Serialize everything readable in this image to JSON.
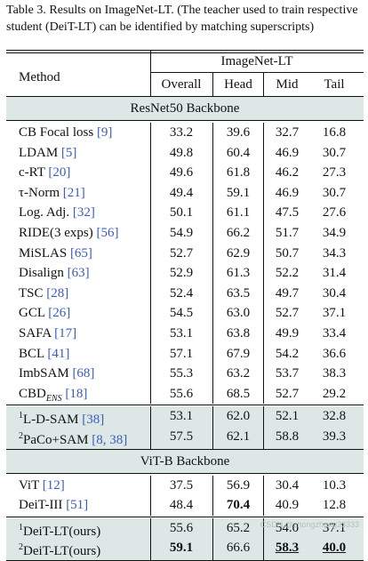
{
  "caption": "Table 3. Results on ImageNet-LT. (The teacher used to train respective student (DeiT-LT) can be identified by matching superscripts)",
  "header": {
    "method": "Method",
    "group": "ImageNet-LT",
    "cols": [
      "Overall",
      "Head",
      "Mid",
      "Tail"
    ]
  },
  "sections": [
    {
      "title": "ResNet50 Backbone",
      "rows": [
        {
          "name": "CB Focal loss",
          "cite": "[9]",
          "values": [
            "33.2",
            "39.6",
            "32.7",
            "16.8"
          ]
        },
        {
          "name": "LDAM",
          "cite": "[5]",
          "values": [
            "49.8",
            "60.4",
            "46.9",
            "30.7"
          ]
        },
        {
          "name": "c-RT",
          "cite": "[20]",
          "values": [
            "49.6",
            "61.8",
            "46.2",
            "27.3"
          ]
        },
        {
          "name": "τ-Norm",
          "cite": "[21]",
          "values": [
            "49.4",
            "59.1",
            "46.9",
            "30.7"
          ]
        },
        {
          "name": "Log. Adj.",
          "cite": "[32]",
          "values": [
            "50.1",
            "61.1",
            "47.5",
            "27.6"
          ]
        },
        {
          "name": "RIDE(3 exps)",
          "cite": "[56]",
          "values": [
            "54.9",
            "66.2",
            "51.7",
            "34.9"
          ]
        },
        {
          "name": "MiSLAS",
          "cite": "[65]",
          "values": [
            "52.7",
            "62.9",
            "50.7",
            "34.3"
          ]
        },
        {
          "name": "Disalign",
          "cite": "[63]",
          "values": [
            "52.9",
            "61.3",
            "52.2",
            "31.4"
          ]
        },
        {
          "name": "TSC",
          "cite": "[28]",
          "values": [
            "52.4",
            "63.5",
            "49.7",
            "30.4"
          ]
        },
        {
          "name": "GCL",
          "cite": "[26]",
          "values": [
            "54.5",
            "63.0",
            "52.7",
            "37.1"
          ]
        },
        {
          "name": "SAFA",
          "cite": "[17]",
          "values": [
            "53.1",
            "63.8",
            "49.9",
            "33.4"
          ]
        },
        {
          "name": "BCL",
          "cite": "[41]",
          "values": [
            "57.1",
            "67.9",
            "54.2",
            "36.6"
          ]
        },
        {
          "name": "ImbSAM",
          "cite": "[68]",
          "values": [
            "55.3",
            "63.2",
            "53.7",
            "38.3"
          ]
        },
        {
          "name": "CBD",
          "sub": "ENS",
          "cite": "[18]",
          "values": [
            "55.6",
            "68.5",
            "52.7",
            "29.2"
          ]
        }
      ],
      "teachers": [
        {
          "sup": "1",
          "name": "L-D-SAM",
          "cite": "[38]",
          "values": [
            "53.1",
            "62.0",
            "52.1",
            "32.8"
          ]
        },
        {
          "sup": "2",
          "name": "PaCo+SAM",
          "cite": "[8, 38]",
          "values": [
            "57.5",
            "62.1",
            "58.8",
            "39.3"
          ]
        }
      ]
    },
    {
      "title": "ViT-B Backbone",
      "rows": [
        {
          "name": "ViT",
          "cite": "[12]",
          "values": [
            "37.5",
            "56.9",
            "30.4",
            "10.3"
          ]
        },
        {
          "name": "DeiT-III",
          "cite": "[51]",
          "values": [
            "48.4",
            "70.4",
            "40.9",
            "12.8"
          ]
        }
      ],
      "ours": [
        {
          "sup": "1",
          "name": "DeiT-LT(ours)",
          "values": [
            "55.6",
            "65.2",
            "54.0",
            "37.1"
          ]
        },
        {
          "sup": "2",
          "name": "DeiT-LT(ours)",
          "values": [
            "59.1",
            "66.6",
            "58.3",
            "40.0"
          ]
        }
      ]
    }
  ],
  "emphasis": {
    "bold": [
      "1.rows.1.1",
      "1.ours.1.0",
      "1.ours.1.2",
      "1.ours.1.3"
    ],
    "underline": [
      "1.ours.1.2",
      "1.ours.1.3"
    ]
  },
  "watermark": "CSDN @zhongzhong23333",
  "colors": {
    "shade": "#dde8e6",
    "cite": "#3b5bc0",
    "rule": "#111111"
  }
}
